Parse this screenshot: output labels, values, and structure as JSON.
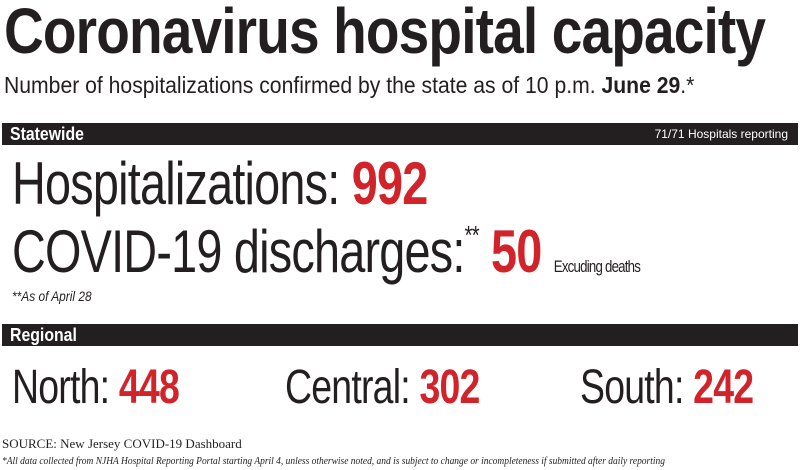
{
  "title": "Coronavirus hospital capacity",
  "subtitle": {
    "text": "Number of hospitalizations confirmed by the state as of 10 p.m. ",
    "date": "June 29",
    "suffix": ".*"
  },
  "statewide": {
    "label": "Statewide",
    "reporting": "71/71 Hospitals reporting",
    "hospitalizations_label": "Hospitalizations: ",
    "hospitalizations_value": "992",
    "discharges_label": "COVID-19 discharges:",
    "discharges_mark": "**",
    "discharges_value": "50",
    "discharges_note": "Excuding deaths",
    "as_of_note": "**As of April 28"
  },
  "regional": {
    "label": "Regional",
    "regions": [
      {
        "label": "North: ",
        "value": "448"
      },
      {
        "label": "Central: ",
        "value": "302"
      },
      {
        "label": "South: ",
        "value": "242"
      }
    ]
  },
  "source": "SOURCE: New Jersey COVID-19 Dashboard",
  "footnote": "*All data collected from NJHA Hospital Reporting Portal starting April 4, unless otherwise noted, and is subject to change or incompleteness if submitted after daily reporting",
  "colors": {
    "accent": "#d2232a",
    "bar": "#231f20"
  }
}
